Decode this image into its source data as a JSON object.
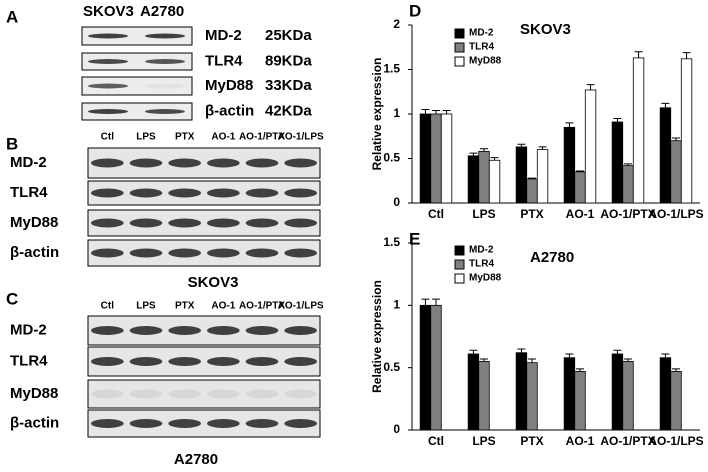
{
  "panel_a": {
    "label": "A",
    "columns": [
      "SKOV3",
      "A2780"
    ],
    "rows": [
      {
        "protein": "MD-2",
        "size": "25KDa"
      },
      {
        "protein": "TLR4",
        "size": "89KDa"
      },
      {
        "protein": "MyD88",
        "size": "33KDa"
      },
      {
        "protein": "β-actin",
        "size": "42KDa"
      }
    ]
  },
  "panel_b": {
    "label": "B",
    "lanes": [
      "Ctl",
      "LPS",
      "PTX",
      "AO-1",
      "AO-1/PTX",
      "AO-1/LPS"
    ],
    "rows": [
      "MD-2",
      "TLR4",
      "MyD88",
      "β-actin"
    ],
    "caption": "SKOV3"
  },
  "panel_c": {
    "label": "C",
    "lanes": [
      "Ctl",
      "LPS",
      "PTX",
      "AO-1",
      "AO-1/PTX",
      "AO-1/LPS"
    ],
    "rows": [
      "MD-2",
      "TLR4",
      "MyD88",
      "β-actin"
    ],
    "caption": "A2780"
  },
  "chart_data": [
    {
      "type": "bar",
      "panel_label": "D",
      "title": "SKOV3",
      "y_label": "Relative expression",
      "categories": [
        "Ctl",
        "LPS",
        "PTX",
        "AO-1",
        "AO-1/PTX",
        "AO-1/LPS"
      ],
      "series": [
        {
          "name": "MD-2",
          "color": "#000000",
          "values": [
            1,
            0.53,
            0.63,
            0.85,
            0.91,
            1.07
          ],
          "errors": [
            0.05,
            0.03,
            0.03,
            0.05,
            0.04,
            0.05
          ]
        },
        {
          "name": "TLR4",
          "color": "#808080",
          "values": [
            1,
            0.58,
            0.27,
            0.35,
            0.42,
            0.7
          ],
          "errors": [
            0.04,
            0.03,
            0.01,
            0.01,
            0.02,
            0.03
          ]
        },
        {
          "name": "MyD88",
          "color": "#ffffff",
          "values": [
            1,
            0.48,
            0.6,
            1.27,
            1.63,
            1.62
          ],
          "errors": [
            0.04,
            0.03,
            0.03,
            0.06,
            0.07,
            0.07
          ]
        }
      ],
      "ylim": [
        0,
        2
      ],
      "yticks": [
        0,
        0.5,
        1,
        1.5,
        2
      ]
    },
    {
      "type": "bar",
      "panel_label": "E",
      "title": "A2780",
      "y_label": "Relative expression",
      "categories": [
        "Ctl",
        "LPS",
        "PTX",
        "AO-1",
        "AO-1/PTX",
        "AO-1/LPS"
      ],
      "series": [
        {
          "name": "MD-2",
          "color": "#000000",
          "values": [
            1,
            0.61,
            0.62,
            0.58,
            0.61,
            0.58
          ],
          "errors": [
            0.05,
            0.03,
            0.03,
            0.03,
            0.03,
            0.03
          ]
        },
        {
          "name": "TLR4",
          "color": "#808080",
          "values": [
            1,
            0.55,
            0.54,
            0.47,
            0.55,
            0.47
          ],
          "errors": [
            0.05,
            0.02,
            0.03,
            0.02,
            0.02,
            0.02
          ]
        },
        {
          "name": "MyD88",
          "color": "#ffffff",
          "values": [
            0,
            0,
            0,
            0,
            0,
            0
          ]
        }
      ],
      "ylim": [
        0,
        1.5
      ],
      "yticks": [
        0,
        0.5,
        1,
        1.5
      ]
    }
  ]
}
